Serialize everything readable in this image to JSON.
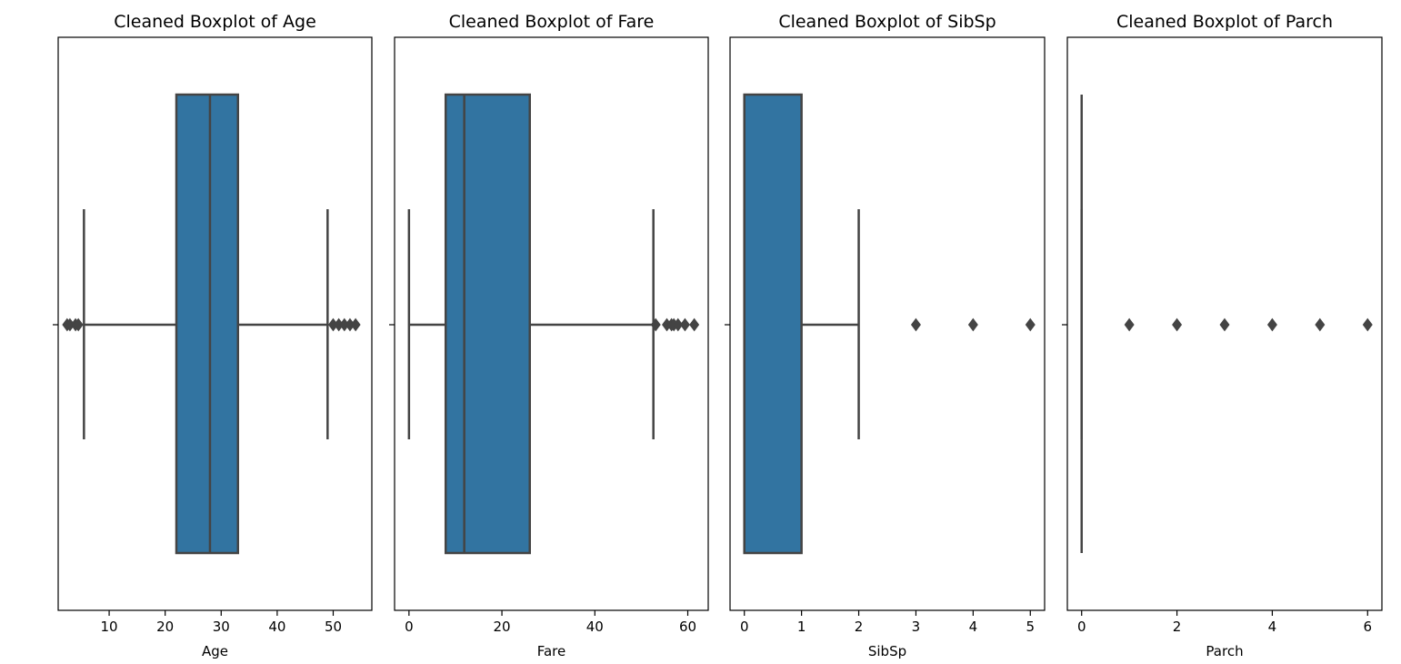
{
  "colors": {
    "box_fill": "#3274a1",
    "line": "#444444",
    "frame": "#000000",
    "background": "#ffffff"
  },
  "chart_data": [
    {
      "type": "boxplot",
      "orientation": "horizontal",
      "title": "Cleaned Boxplot of Age",
      "xlabel": "Age",
      "xlim": [
        0.9,
        56.9
      ],
      "xticks": [
        10,
        20,
        30,
        40,
        50
      ],
      "whisker_low": 5.5,
      "q1": 22.0,
      "median": 28.0,
      "q3": 33.0,
      "whisker_high": 49.0,
      "outliers": [
        2.5,
        3.0,
        4.0,
        4.5,
        50.0,
        51.0,
        52.0,
        53.0,
        54.0
      ],
      "grid": false
    },
    {
      "type": "boxplot",
      "orientation": "horizontal",
      "title": "Cleaned Boxplot of Fare",
      "xlabel": "Fare",
      "xlim": [
        -3.1,
        64.4
      ],
      "xticks": [
        0,
        20,
        40,
        60
      ],
      "whisker_low": 0.0,
      "q1": 7.9,
      "median": 11.9,
      "q3": 26.0,
      "whisker_high": 52.6,
      "outliers": [
        53.1,
        55.5,
        56.5,
        57.0,
        57.9,
        59.4,
        61.4
      ],
      "grid": false
    },
    {
      "type": "boxplot",
      "orientation": "horizontal",
      "title": "Cleaned Boxplot of SibSp",
      "xlabel": "SibSp",
      "xlim": [
        -0.25,
        5.25
      ],
      "xticks": [
        0,
        1,
        2,
        3,
        4,
        5
      ],
      "whisker_low": 0,
      "q1": 0,
      "median": 0,
      "q3": 1,
      "whisker_high": 2,
      "outliers": [
        3,
        4,
        5
      ],
      "grid": false
    },
    {
      "type": "boxplot",
      "orientation": "horizontal",
      "title": "Cleaned Boxplot of Parch",
      "xlabel": "Parch",
      "xlim": [
        -0.3,
        6.3
      ],
      "xticks": [
        0,
        2,
        4,
        6
      ],
      "whisker_low": 0,
      "q1": 0,
      "median": 0,
      "q3": 0,
      "whisker_high": 0,
      "outliers": [
        1,
        2,
        3,
        4,
        5,
        6
      ],
      "grid": false
    }
  ]
}
